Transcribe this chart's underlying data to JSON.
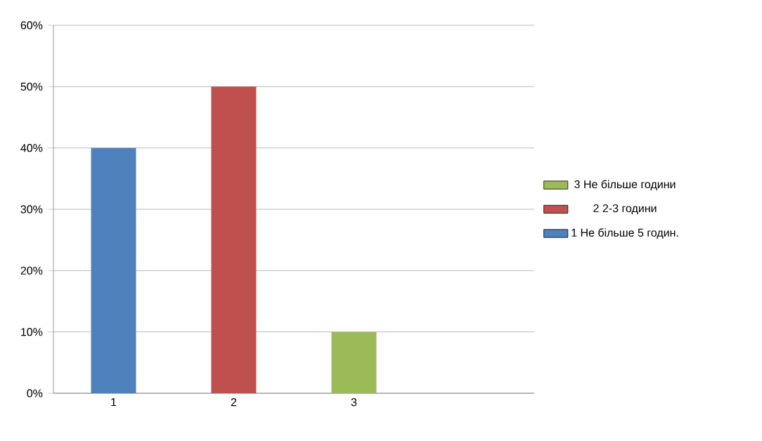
{
  "chart_data": {
    "type": "bar",
    "categories": [
      "1",
      "2",
      "3",
      null
    ],
    "series": [
      {
        "name": "1 Не більше 5 годин.",
        "color": "#4f81bd",
        "values": [
          40,
          null,
          null,
          null
        ]
      },
      {
        "name": "2 2-3 години",
        "color": "#c0504d",
        "values": [
          null,
          50,
          null,
          null
        ]
      },
      {
        "name": "3 Не більше години",
        "color": "#9bbb59",
        "values": [
          null,
          null,
          10,
          null
        ]
      }
    ],
    "ylim": [
      0,
      60
    ],
    "yticks": [
      {
        "value": 0,
        "label": "0%"
      },
      {
        "value": 10,
        "label": "10%"
      },
      {
        "value": 20,
        "label": "20%"
      },
      {
        "value": 30,
        "label": "30%"
      },
      {
        "value": 40,
        "label": "40%"
      },
      {
        "value": 50,
        "label": "50%"
      },
      {
        "value": 60,
        "label": "60%"
      }
    ],
    "grid": "y",
    "legend": "right"
  }
}
